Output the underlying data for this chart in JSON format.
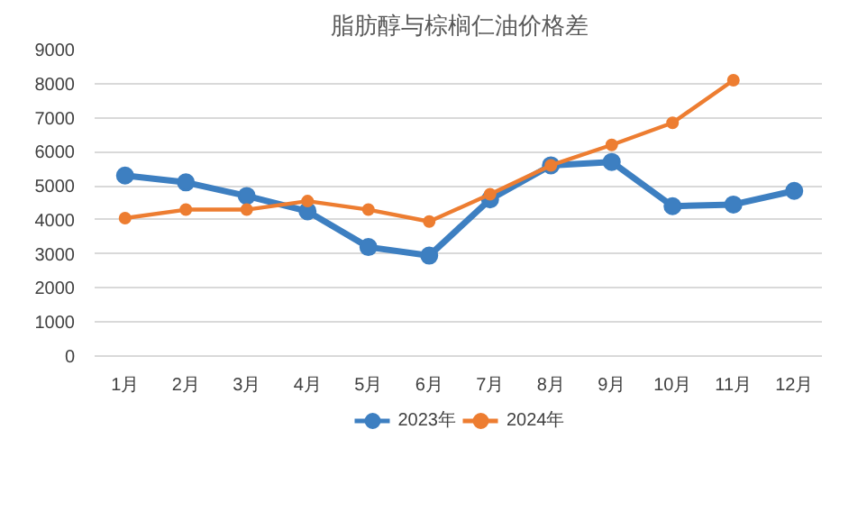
{
  "chart_data": {
    "type": "line",
    "title": "脂肪醇与棕榈仁油价格差",
    "categories": [
      "1月",
      "2月",
      "3月",
      "4月",
      "5月",
      "6月",
      "7月",
      "8月",
      "9月",
      "10月",
      "11月",
      "12月"
    ],
    "series": [
      {
        "name": "2023年",
        "color": "#3d7fc1",
        "values": [
          5300,
          5100,
          4700,
          4250,
          3200,
          2950,
          4600,
          5600,
          5700,
          4400,
          4450,
          4850
        ]
      },
      {
        "name": "2024年",
        "color": "#ed7d31",
        "values": [
          4050,
          4300,
          4300,
          4550,
          4300,
          3950,
          4750,
          5600,
          6200,
          6850,
          8100,
          null
        ]
      }
    ],
    "ylim": [
      0,
      9000
    ],
    "yticks": [
      0,
      1000,
      2000,
      3000,
      4000,
      5000,
      6000,
      7000,
      8000,
      9000
    ],
    "grid": "y",
    "legend": "bottom",
    "marker": "circle",
    "line_style": "solid"
  }
}
